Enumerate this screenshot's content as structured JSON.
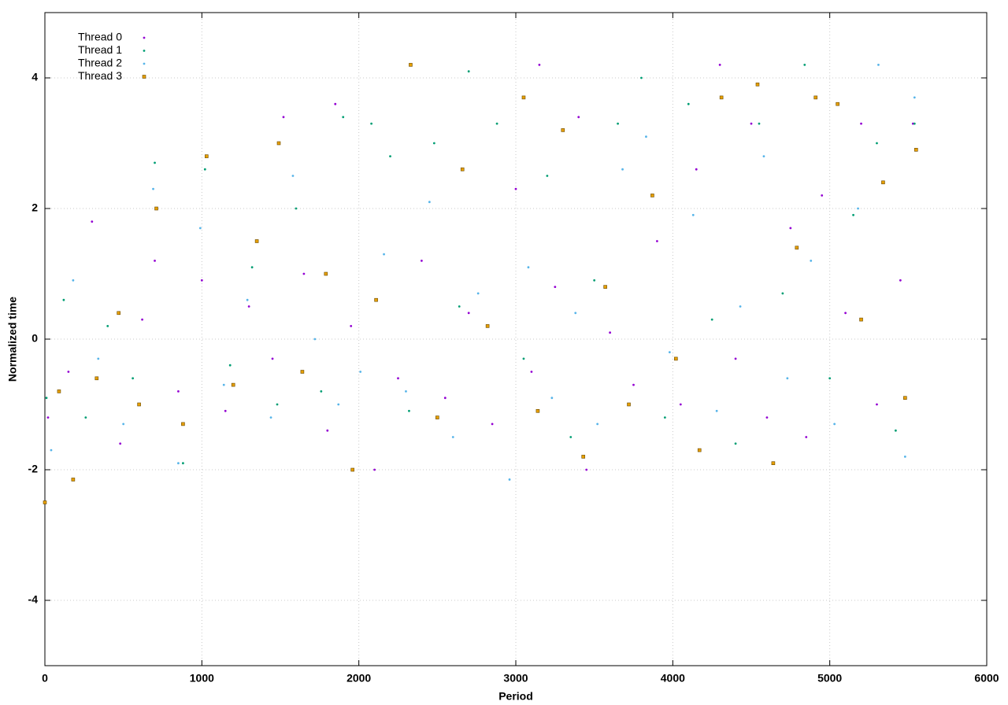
{
  "chart_data": {
    "type": "scatter",
    "xlabel": "Period",
    "ylabel": "Normalized time",
    "xlim": [
      0,
      6000
    ],
    "xticks": [
      0,
      1000,
      2000,
      3000,
      4000,
      5000,
      6000
    ],
    "ylim": [
      -5,
      5
    ],
    "yticks": [
      -4,
      -2,
      0,
      2,
      4
    ],
    "grid": true,
    "legend": "top-left",
    "series": [
      {
        "name": "Thread 0",
        "color": "#9400d3",
        "marker": "dot",
        "x": [
          20,
          150,
          300,
          480,
          620,
          700,
          850,
          1000,
          1150,
          1300,
          1450,
          1520,
          1650,
          1800,
          1850,
          1950,
          2100,
          2250,
          2400,
          2550,
          2700,
          2850,
          3000,
          3100,
          3150,
          3250,
          3400,
          3450,
          3600,
          3750,
          3900,
          4050,
          4150,
          4300,
          4400,
          4500,
          4600,
          4750,
          4850,
          4950,
          5100,
          5200,
          5300,
          5450,
          5530
        ],
        "values": [
          -1.2,
          -0.5,
          1.8,
          -1.6,
          0.3,
          1.2,
          -0.8,
          0.9,
          -1.1,
          0.5,
          -0.3,
          3.4,
          1.0,
          -1.4,
          3.6,
          0.2,
          -2.0,
          -0.6,
          1.2,
          -0.9,
          0.4,
          -1.3,
          2.3,
          -0.5,
          4.2,
          0.8,
          3.4,
          -2.0,
          0.1,
          -0.7,
          1.5,
          -1.0,
          2.6,
          4.2,
          -0.3,
          3.3,
          -1.2,
          1.7,
          -1.5,
          2.2,
          0.4,
          3.3,
          -1.0,
          0.9,
          3.3
        ]
      },
      {
        "name": "Thread 1",
        "color": "#009e73",
        "marker": "dot",
        "x": [
          10,
          120,
          260,
          400,
          560,
          700,
          880,
          1020,
          1180,
          1320,
          1480,
          1600,
          1760,
          1900,
          2080,
          2200,
          2320,
          2480,
          2640,
          2700,
          2880,
          3050,
          3200,
          3350,
          3500,
          3650,
          3800,
          3950,
          4100,
          4250,
          4400,
          4550,
          4700,
          4840,
          5000,
          5150,
          5300,
          5420,
          5540
        ],
        "values": [
          -0.9,
          0.6,
          -1.2,
          0.2,
          -0.6,
          2.7,
          -1.9,
          2.6,
          -0.4,
          1.1,
          -1.0,
          2.0,
          -0.8,
          3.4,
          3.3,
          2.8,
          -1.1,
          3.0,
          0.5,
          4.1,
          3.3,
          -0.3,
          2.5,
          -1.5,
          0.9,
          3.3,
          4.0,
          -1.2,
          3.6,
          0.3,
          -1.6,
          3.3,
          0.7,
          4.2,
          -0.6,
          1.9,
          3.0,
          -1.4,
          3.3
        ]
      },
      {
        "name": "Thread 2",
        "color": "#56b4e9",
        "marker": "dot",
        "x": [
          40,
          180,
          340,
          500,
          690,
          850,
          990,
          1140,
          1290,
          1440,
          1580,
          1720,
          1870,
          2010,
          2160,
          2300,
          2450,
          2600,
          2760,
          2960,
          3080,
          3230,
          3380,
          3520,
          3680,
          3830,
          3980,
          4130,
          4280,
          4430,
          4580,
          4730,
          4880,
          5030,
          5180,
          5310,
          5480,
          5540
        ],
        "values": [
          -1.7,
          0.9,
          -0.3,
          -1.3,
          2.3,
          -1.9,
          1.7,
          -0.7,
          0.6,
          -1.2,
          2.5,
          0.0,
          -1.0,
          -0.5,
          1.3,
          -0.8,
          2.1,
          -1.5,
          0.7,
          -2.15,
          1.1,
          -0.9,
          0.4,
          -1.3,
          2.6,
          3.1,
          -0.2,
          1.9,
          -1.1,
          0.5,
          2.8,
          -0.6,
          1.2,
          -1.3,
          2.0,
          4.2,
          -1.8,
          3.7
        ]
      },
      {
        "name": "Thread 3",
        "color": "#e69f00",
        "marker": "square",
        "x": [
          0,
          90,
          180,
          330,
          470,
          600,
          710,
          880,
          1030,
          1200,
          1350,
          1490,
          1640,
          1790,
          1960,
          2110,
          2330,
          2500,
          2660,
          2820,
          3050,
          3140,
          3300,
          3430,
          3570,
          3720,
          3870,
          4020,
          4170,
          4310,
          4540,
          4640,
          4790,
          4910,
          5050,
          5200,
          5340,
          5480,
          5550
        ],
        "values": [
          -2.5,
          -0.8,
          -2.15,
          -0.6,
          0.4,
          -1.0,
          2.0,
          -1.3,
          2.8,
          -0.7,
          1.5,
          3.0,
          -0.5,
          1.0,
          -2.0,
          0.6,
          4.2,
          -1.2,
          2.6,
          0.2,
          3.7,
          -1.1,
          3.2,
          -1.8,
          0.8,
          -1.0,
          2.2,
          -0.3,
          -1.7,
          3.7,
          3.9,
          -1.9,
          1.4,
          3.7,
          3.6,
          0.3,
          2.4,
          -0.9,
          2.9
        ]
      }
    ]
  }
}
